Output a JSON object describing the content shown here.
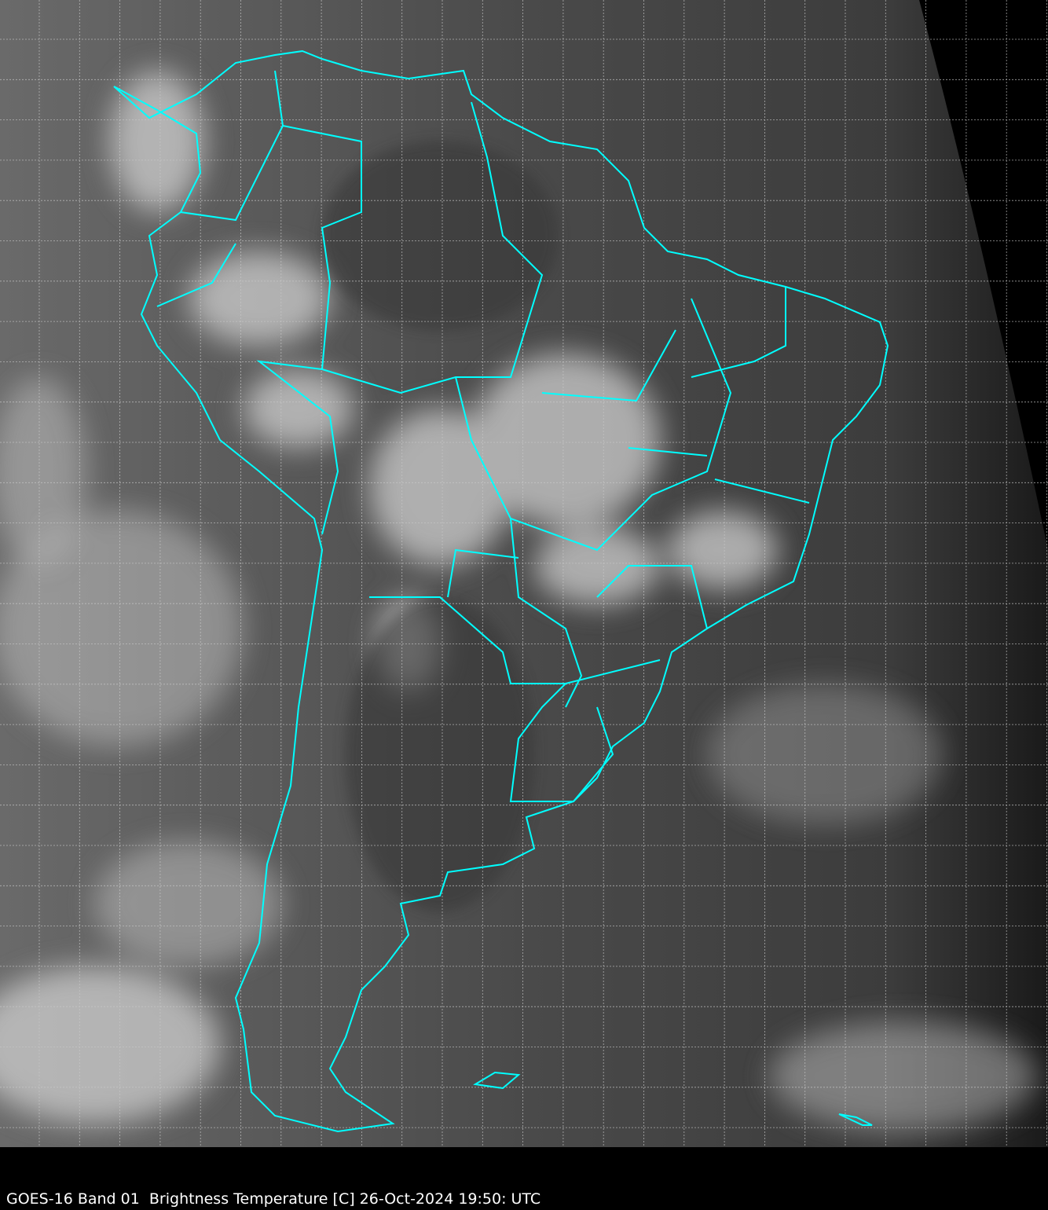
{
  "caption": "GOES-16 Band 01  Brightness Temperature [C] 26-Oct-2024 19:50: UTC",
  "map": {
    "satellite": "GOES-16",
    "band": "Band 01",
    "region_shown": "South America",
    "boundary_color": "#00ffff",
    "grid_color": "#c8c8c8",
    "grid": true,
    "background_color": "#000000"
  }
}
